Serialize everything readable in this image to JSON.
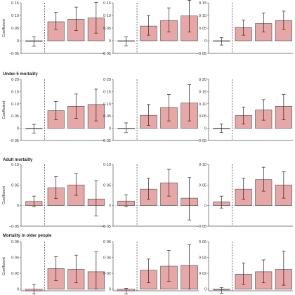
{
  "colors": {
    "bar_fill": "#e8a7a7",
    "bar_edge": "#444444",
    "error_bar": "#222222",
    "axis": "#555555",
    "divider": "#333333"
  },
  "chart_data": [
    {
      "type": "bar",
      "row_title": "",
      "ylabel": "Coefficient",
      "ylim": [
        -0.05,
        0.15
      ],
      "yticks": [
        -0.05,
        0,
        0.05,
        0.1,
        0.15
      ],
      "ytick_labels": [
        "−0·05",
        "0",
        "0·05",
        "0·10",
        "0·15"
      ],
      "panels": [
        {
          "values": [
            -0.003,
            0.075,
            0.085,
            0.09
          ],
          "lower": [
            -0.022,
            0.045,
            0.04,
            0.03
          ],
          "upper": [
            0.015,
            0.113,
            0.133,
            0.152
          ]
        },
        {
          "values": [
            -0.002,
            0.058,
            0.08,
            0.098
          ],
          "lower": [
            -0.02,
            0.022,
            0.035,
            0.035
          ],
          "upper": [
            0.015,
            0.1,
            0.13,
            0.16
          ]
        },
        {
          "values": [
            -0.002,
            0.052,
            0.068,
            0.08
          ],
          "lower": [
            -0.017,
            0.022,
            0.035,
            0.045
          ],
          "upper": [
            0.012,
            0.082,
            0.11,
            0.117
          ]
        }
      ]
    },
    {
      "type": "bar",
      "row_title": "Under-5 mortality",
      "ylabel": "Coefficient",
      "ylim": [
        -0.05,
        0.2
      ],
      "yticks": [
        -0.05,
        0,
        0.05,
        0.1,
        0.15,
        0.2
      ],
      "ytick_labels": [
        "−0·05",
        "0",
        "0·05",
        "0·10",
        "0·15",
        "0·20"
      ],
      "panels": [
        {
          "values": [
            -0.002,
            0.072,
            0.09,
            0.097
          ],
          "lower": [
            -0.02,
            0.035,
            0.04,
            0.03
          ],
          "upper": [
            0.016,
            0.11,
            0.14,
            0.16
          ]
        },
        {
          "values": [
            -0.002,
            0.053,
            0.085,
            0.103
          ],
          "lower": [
            -0.018,
            0.012,
            0.03,
            0.03
          ],
          "upper": [
            0.022,
            0.097,
            0.138,
            0.178
          ]
        },
        {
          "values": [
            -0.002,
            0.052,
            0.075,
            0.09
          ],
          "lower": [
            -0.017,
            0.017,
            0.033,
            0.035
          ],
          "upper": [
            0.017,
            0.087,
            0.117,
            0.138
          ]
        }
      ]
    },
    {
      "type": "bar",
      "row_title": "Adult mortality",
      "ylabel": "Coefficient",
      "ylim": [
        -0.05,
        0.1
      ],
      "yticks": [
        -0.05,
        0,
        0.05,
        0.1
      ],
      "ytick_labels": [
        "−0·05",
        "0",
        "0·05",
        "0·10"
      ],
      "panels": [
        {
          "values": [
            0.01,
            0.043,
            0.05,
            0.016
          ],
          "lower": [
            -0.003,
            0.017,
            0.025,
            -0.025
          ],
          "upper": [
            0.023,
            0.07,
            0.078,
            0.06
          ]
        },
        {
          "values": [
            0.011,
            0.04,
            0.055,
            0.018
          ],
          "lower": [
            -0.003,
            0.015,
            0.023,
            -0.035
          ],
          "upper": [
            0.026,
            0.066,
            0.088,
            0.068
          ]
        },
        {
          "values": [
            0.009,
            0.04,
            0.063,
            0.05
          ],
          "lower": [
            -0.006,
            0.015,
            0.035,
            0.018
          ],
          "upper": [
            0.023,
            0.066,
            0.093,
            0.082
          ]
        }
      ]
    },
    {
      "type": "bar",
      "row_title": "Mortality in older people",
      "ylabel": "Coefficient",
      "ylim": [
        -0.002,
        0.06
      ],
      "yticks": [
        0,
        0.02,
        0.04,
        0.06
      ],
      "ytick_labels": [
        "0",
        "0·02",
        "0·04",
        "0·06"
      ],
      "panels": [
        {
          "values": [
            -0.002,
            0.026,
            0.025,
            0.022
          ],
          "lower": [
            -0.006,
            0.011,
            0.008,
            0.0
          ],
          "upper": [
            0.006,
            0.041,
            0.043,
            0.047
          ]
        },
        {
          "values": [
            -0.002,
            0.024,
            0.029,
            0.03
          ],
          "lower": [
            -0.006,
            0.008,
            0.01,
            0.0
          ],
          "upper": [
            0.001,
            0.038,
            0.049,
            0.056
          ]
        },
        {
          "values": [
            -0.001,
            0.019,
            0.022,
            0.025
          ],
          "lower": [
            -0.005,
            0.006,
            0.008,
            0.005
          ],
          "upper": [
            0.002,
            0.033,
            0.037,
            0.048
          ]
        }
      ]
    }
  ]
}
